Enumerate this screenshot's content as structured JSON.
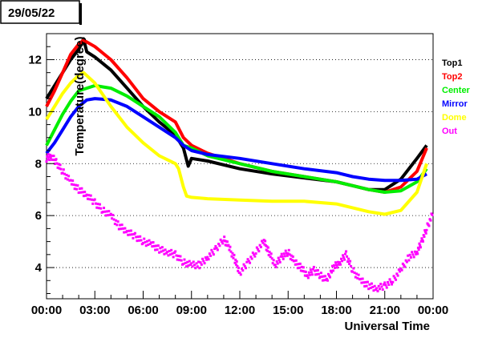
{
  "date_label": "29/05/22",
  "colors": {
    "Top1": "#000000",
    "Top2": "#ff0000",
    "Center": "#00ee00",
    "Mirror": "#0000ff",
    "Dome": "#ffff00",
    "Out": "#ff00ff"
  },
  "chart_data": {
    "type": "line",
    "title": "",
    "xlabel": "Universal Time",
    "ylabel": "Temperature(degree)",
    "xlim": [
      0,
      24
    ],
    "ylim": [
      2.8,
      13.0
    ],
    "x_ticks": [
      0,
      3,
      6,
      9,
      12,
      15,
      18,
      21,
      24
    ],
    "x_tick_labels": [
      "00:00",
      "03:00",
      "06:00",
      "09:00",
      "12:00",
      "15:00",
      "18:00",
      "21:00",
      "00:00"
    ],
    "y_ticks": [
      4,
      6,
      8,
      10,
      12
    ],
    "y_tick_labels": [
      "4",
      "6",
      "8",
      "10",
      "12"
    ],
    "grid": "horizontal dotted",
    "legend_placement": "right",
    "series": [
      {
        "name": "Top1",
        "points": [
          [
            0,
            10.5
          ],
          [
            0.5,
            11.0
          ],
          [
            1.0,
            11.5
          ],
          [
            1.5,
            12.0
          ],
          [
            2.0,
            12.4
          ],
          [
            2.3,
            12.8
          ],
          [
            2.5,
            12.3
          ],
          [
            3.0,
            12.1
          ],
          [
            4.0,
            11.6
          ],
          [
            5.0,
            10.9
          ],
          [
            6.0,
            10.2
          ],
          [
            7.0,
            9.6
          ],
          [
            8.0,
            9.1
          ],
          [
            8.5,
            8.6
          ],
          [
            8.8,
            7.9
          ],
          [
            9.0,
            8.2
          ],
          [
            10.0,
            8.1
          ],
          [
            12.0,
            7.8
          ],
          [
            14.0,
            7.6
          ],
          [
            16.0,
            7.45
          ],
          [
            18.0,
            7.3
          ],
          [
            19.0,
            7.15
          ],
          [
            20.0,
            7.0
          ],
          [
            21.0,
            7.0
          ],
          [
            22.0,
            7.4
          ],
          [
            23.0,
            8.2
          ],
          [
            23.6,
            8.7
          ]
        ]
      },
      {
        "name": "Top2",
        "points": [
          [
            0,
            10.2
          ],
          [
            0.5,
            10.8
          ],
          [
            1.0,
            11.5
          ],
          [
            1.5,
            12.2
          ],
          [
            2.0,
            12.6
          ],
          [
            2.3,
            12.75
          ],
          [
            3.0,
            12.5
          ],
          [
            4.0,
            12.0
          ],
          [
            5.0,
            11.3
          ],
          [
            6.0,
            10.5
          ],
          [
            7.0,
            10.0
          ],
          [
            8.0,
            9.6
          ],
          [
            8.5,
            9.0
          ],
          [
            9.0,
            8.7
          ],
          [
            10.0,
            8.4
          ],
          [
            12.0,
            8.0
          ],
          [
            14.0,
            7.7
          ],
          [
            16.0,
            7.5
          ],
          [
            18.0,
            7.3
          ],
          [
            19.0,
            7.15
          ],
          [
            20.0,
            7.0
          ],
          [
            21.0,
            6.9
          ],
          [
            22.0,
            7.1
          ],
          [
            23.0,
            7.7
          ],
          [
            23.6,
            8.6
          ]
        ]
      },
      {
        "name": "Center",
        "points": [
          [
            0,
            8.7
          ],
          [
            0.5,
            9.3
          ],
          [
            1.0,
            9.9
          ],
          [
            1.5,
            10.4
          ],
          [
            2.0,
            10.8
          ],
          [
            3.0,
            11.0
          ],
          [
            4.0,
            10.9
          ],
          [
            5.0,
            10.6
          ],
          [
            6.0,
            10.2
          ],
          [
            7.0,
            9.8
          ],
          [
            8.0,
            9.2
          ],
          [
            8.5,
            8.7
          ],
          [
            9.0,
            8.6
          ],
          [
            10.0,
            8.3
          ],
          [
            12.0,
            8.0
          ],
          [
            14.0,
            7.7
          ],
          [
            16.0,
            7.5
          ],
          [
            18.0,
            7.3
          ],
          [
            19.0,
            7.15
          ],
          [
            20.0,
            7.0
          ],
          [
            21.0,
            6.9
          ],
          [
            22.0,
            6.95
          ],
          [
            23.0,
            7.3
          ],
          [
            23.6,
            7.8
          ]
        ]
      },
      {
        "name": "Mirror",
        "points": [
          [
            0,
            8.4
          ],
          [
            0.5,
            8.8
          ],
          [
            1.0,
            9.3
          ],
          [
            1.5,
            9.8
          ],
          [
            2.0,
            10.2
          ],
          [
            2.5,
            10.45
          ],
          [
            3.0,
            10.5
          ],
          [
            4.0,
            10.45
          ],
          [
            5.0,
            10.2
          ],
          [
            6.0,
            9.8
          ],
          [
            7.0,
            9.4
          ],
          [
            8.0,
            9.0
          ],
          [
            8.5,
            8.7
          ],
          [
            9.0,
            8.5
          ],
          [
            10.0,
            8.35
          ],
          [
            12.0,
            8.2
          ],
          [
            14.0,
            8.0
          ],
          [
            16.0,
            7.8
          ],
          [
            18.0,
            7.65
          ],
          [
            19.0,
            7.5
          ],
          [
            20.0,
            7.4
          ],
          [
            21.0,
            7.35
          ],
          [
            22.0,
            7.35
          ],
          [
            23.0,
            7.4
          ],
          [
            23.6,
            7.6
          ]
        ]
      },
      {
        "name": "Dome",
        "points": [
          [
            0,
            9.7
          ],
          [
            0.5,
            10.2
          ],
          [
            1.0,
            10.7
          ],
          [
            1.5,
            11.1
          ],
          [
            2.0,
            11.4
          ],
          [
            2.3,
            11.5
          ],
          [
            3.0,
            11.1
          ],
          [
            4.0,
            10.2
          ],
          [
            5.0,
            9.4
          ],
          [
            6.0,
            8.8
          ],
          [
            7.0,
            8.3
          ],
          [
            8.0,
            8.0
          ],
          [
            8.2,
            7.8
          ],
          [
            8.5,
            7.1
          ],
          [
            8.7,
            6.75
          ],
          [
            9.0,
            6.7
          ],
          [
            10.0,
            6.65
          ],
          [
            12.0,
            6.6
          ],
          [
            14.0,
            6.55
          ],
          [
            16.0,
            6.55
          ],
          [
            18.0,
            6.45
          ],
          [
            19.0,
            6.3
          ],
          [
            20.0,
            6.15
          ],
          [
            21.0,
            6.05
          ],
          [
            22.0,
            6.2
          ],
          [
            23.0,
            6.9
          ],
          [
            23.6,
            8.0
          ]
        ]
      },
      {
        "name": "Out",
        "points": [
          [
            0,
            8.2
          ],
          [
            0.3,
            8.3
          ],
          [
            0.6,
            8.05
          ],
          [
            1.0,
            7.7
          ],
          [
            1.5,
            7.3
          ],
          [
            2.0,
            7.0
          ],
          [
            2.5,
            6.8
          ],
          [
            3.0,
            6.5
          ],
          [
            3.5,
            6.2
          ],
          [
            4.0,
            6.0
          ],
          [
            4.5,
            5.6
          ],
          [
            5.0,
            5.4
          ],
          [
            5.5,
            5.2
          ],
          [
            6.0,
            5.0
          ],
          [
            6.5,
            4.9
          ],
          [
            7.0,
            4.7
          ],
          [
            7.5,
            4.6
          ],
          [
            8.0,
            4.5
          ],
          [
            8.5,
            4.2
          ],
          [
            9.0,
            4.1
          ],
          [
            9.5,
            4.1
          ],
          [
            10.0,
            4.4
          ],
          [
            10.5,
            4.7
          ],
          [
            11.0,
            5.1
          ],
          [
            11.3,
            4.8
          ],
          [
            11.7,
            4.3
          ],
          [
            12.0,
            3.8
          ],
          [
            12.5,
            4.2
          ],
          [
            13.0,
            4.6
          ],
          [
            13.5,
            5.0
          ],
          [
            13.8,
            4.6
          ],
          [
            14.2,
            4.1
          ],
          [
            14.6,
            4.4
          ],
          [
            15.0,
            4.6
          ],
          [
            15.4,
            4.2
          ],
          [
            15.8,
            4.0
          ],
          [
            16.2,
            3.7
          ],
          [
            16.6,
            3.9
          ],
          [
            17.0,
            3.7
          ],
          [
            17.4,
            3.5
          ],
          [
            17.8,
            4.0
          ],
          [
            18.2,
            4.2
          ],
          [
            18.6,
            4.5
          ],
          [
            19.0,
            3.9
          ],
          [
            19.5,
            3.5
          ],
          [
            20.0,
            3.3
          ],
          [
            20.5,
            3.2
          ],
          [
            21.0,
            3.3
          ],
          [
            21.5,
            3.5
          ],
          [
            22.0,
            3.9
          ],
          [
            22.5,
            4.4
          ],
          [
            23.0,
            4.6
          ],
          [
            23.3,
            5.0
          ],
          [
            23.6,
            5.5
          ],
          [
            24.0,
            6.1
          ]
        ]
      }
    ]
  }
}
